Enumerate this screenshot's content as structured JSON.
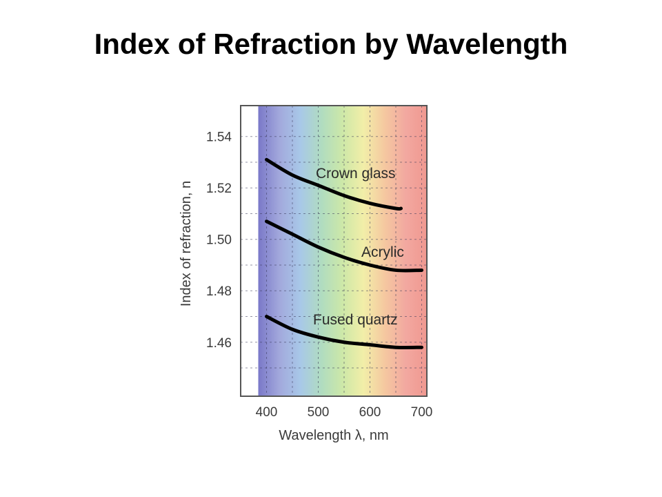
{
  "title": "Index of Refraction by Wavelength",
  "chart_data": {
    "type": "line",
    "xlabel": "Wavelength  λ,  nm",
    "ylabel": "Index of refraction, n",
    "xlim": [
      350,
      710
    ],
    "ylim": [
      1.439,
      1.552
    ],
    "x_ticks": [
      "400",
      "500",
      "600",
      "700"
    ],
    "y_ticks": [
      "1.46",
      "1.48",
      "1.50",
      "1.52",
      "1.54"
    ],
    "grid": true,
    "background": "visible spectrum bands (violet to red) from 400 to 700 nm",
    "series": [
      {
        "name": "Crown glass",
        "x": [
          400,
          450,
          500,
          550,
          600,
          650,
          660
        ],
        "y": [
          1.531,
          1.525,
          1.521,
          1.517,
          1.514,
          1.512,
          1.512
        ]
      },
      {
        "name": "Acrylic",
        "x": [
          400,
          450,
          500,
          550,
          600,
          650,
          700
        ],
        "y": [
          1.507,
          1.502,
          1.497,
          1.493,
          1.49,
          1.488,
          1.488
        ]
      },
      {
        "name": "Fused quartz",
        "x": [
          400,
          450,
          500,
          550,
          600,
          650,
          700
        ],
        "y": [
          1.47,
          1.465,
          1.462,
          1.46,
          1.459,
          1.458,
          1.458
        ]
      }
    ],
    "colors": {
      "spectrum": [
        "#7a78c8",
        "#a2a8dc",
        "#a8c8e8",
        "#b0dcc0",
        "#cde8a8",
        "#f2eea8",
        "#f5c8a0",
        "#f2a8a0",
        "#f09890"
      ],
      "line": "#000000"
    }
  }
}
